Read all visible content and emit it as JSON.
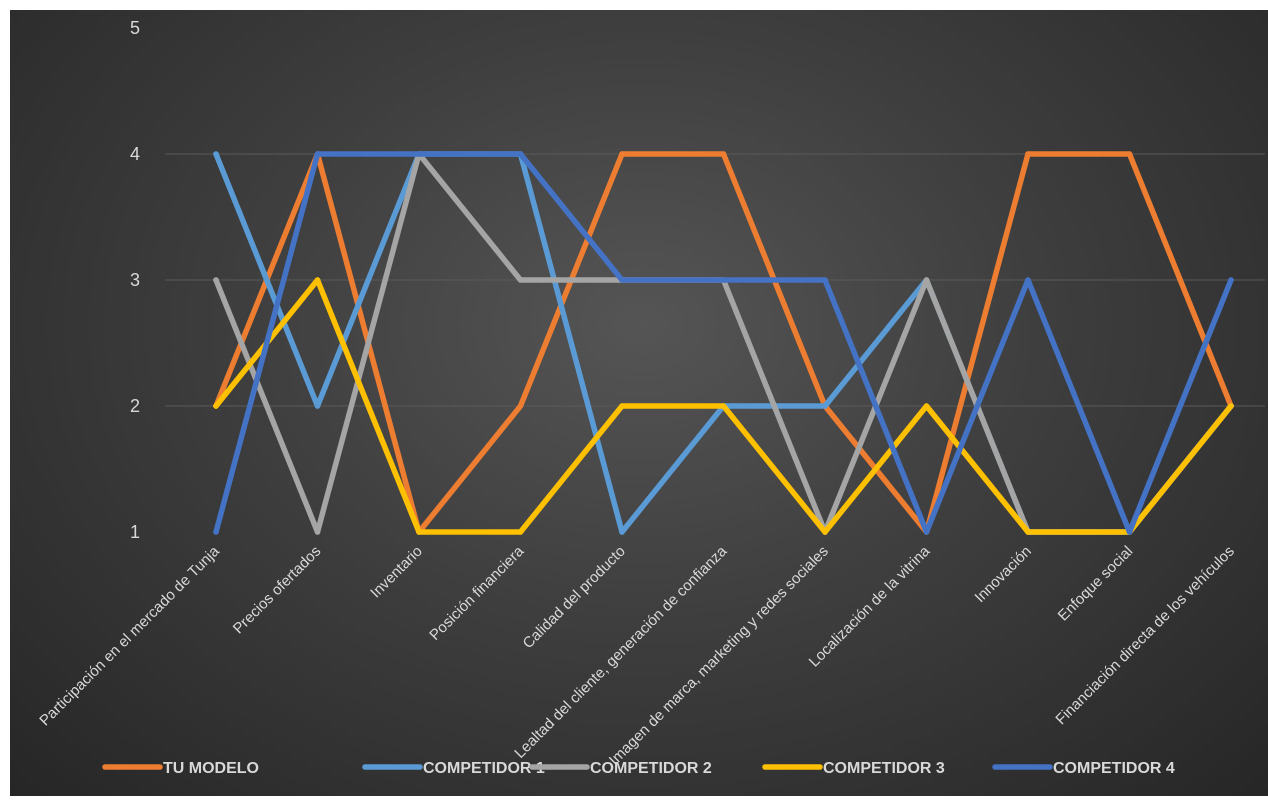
{
  "chart_data": {
    "type": "line",
    "title": "",
    "xlabel": "",
    "ylabel": "",
    "ylim": [
      1,
      5
    ],
    "yticks": [
      "1",
      "2",
      "3",
      "4",
      "5"
    ],
    "grid": true,
    "legend_position": "bottom",
    "categories": [
      "Participación en el mercado de Tunja",
      "Precios ofertados",
      "Inventario",
      "Posición financiera",
      "Calidad del producto",
      "Lealtad del cliente, generación de confianza",
      "Imagen de marca, marketing y redes sociales",
      "Localización de la vitrina",
      "Innovación",
      "Enfoque social",
      "Financiación directa de los vehículos"
    ],
    "series": [
      {
        "name": "TU MODELO",
        "color": "#ED7D31",
        "values": [
          2,
          4,
          1,
          2,
          4,
          4,
          2,
          1,
          4,
          4,
          2
        ]
      },
      {
        "name": "COMPETIDOR 1",
        "color": "#5B9BD5",
        "values": [
          4,
          2,
          4,
          4,
          1,
          2,
          2,
          3,
          1,
          1,
          2
        ]
      },
      {
        "name": "COMPETIDOR 2",
        "color": "#A5A5A5",
        "values": [
          3,
          1,
          4,
          3,
          3,
          3,
          1,
          3,
          1,
          1,
          2
        ]
      },
      {
        "name": "COMPETIDOR 3",
        "color": "#FFC000",
        "values": [
          2,
          3,
          1,
          1,
          2,
          2,
          1,
          2,
          1,
          1,
          2
        ]
      },
      {
        "name": "COMPETIDOR 4",
        "color": "#4472C4",
        "values": [
          1,
          4,
          4,
          4,
          3,
          3,
          3,
          1,
          3,
          1,
          3
        ]
      }
    ]
  }
}
